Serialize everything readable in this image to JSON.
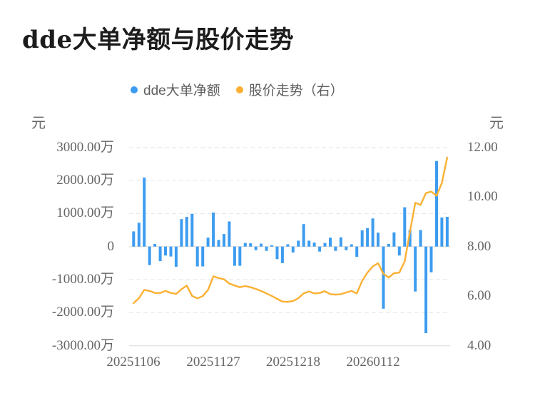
{
  "chart_data": {
    "type": "bar+line",
    "title": "dde大单净额与股价走势",
    "x_tick_labels": [
      "20251106",
      "20251127",
      "20251218",
      "20260112"
    ],
    "x_tick_day_index": [
      0,
      15,
      30,
      45
    ],
    "num_days": 60,
    "grid": "horizontal, dashed, zero-line and bottom-line solid",
    "legend_position": "top-center",
    "left_axis": {
      "unit": "元",
      "tick_labels": [
        "3000.00万",
        "2000.00万",
        "1000.00万",
        "0",
        "-1000.00万",
        "-2000.00万",
        "-3000.00万"
      ],
      "max": 30000000,
      "min": -30000000
    },
    "right_axis": {
      "unit": "元",
      "tick_labels": [
        "12.00",
        "10.00",
        "8.00",
        "6.00",
        "4.00"
      ],
      "max": 12,
      "min": 4
    },
    "series": [
      {
        "name": "dde大单净额",
        "type": "bar",
        "axis": "left",
        "values_unit": "万",
        "color": "#3D9CF0",
        "values": [
          460,
          720,
          2090,
          -560,
          80,
          -440,
          -270,
          -300,
          -610,
          830,
          900,
          990,
          -600,
          -600,
          270,
          1030,
          200,
          380,
          760,
          -580,
          -580,
          110,
          100,
          -110,
          90,
          -130,
          40,
          -380,
          -500,
          70,
          -180,
          180,
          680,
          180,
          120,
          -150,
          110,
          270,
          -130,
          280,
          -110,
          70,
          -310,
          490,
          560,
          850,
          420,
          -1880,
          80,
          430,
          -270,
          1190,
          500,
          -1360,
          500,
          -2620,
          -780,
          2590,
          880,
          900
        ]
      },
      {
        "name": "股价走势（右）",
        "type": "line",
        "axis": "right",
        "values_unit": "元",
        "color": "#FBB033",
        "values": [
          5.72,
          5.92,
          6.25,
          6.21,
          6.13,
          6.13,
          6.21,
          6.13,
          6.09,
          6.28,
          6.43,
          6.01,
          5.91,
          6.0,
          6.25,
          6.8,
          6.73,
          6.68,
          6.51,
          6.43,
          6.36,
          6.41,
          6.36,
          6.29,
          6.21,
          6.11,
          6.01,
          5.89,
          5.78,
          5.77,
          5.8,
          5.92,
          6.11,
          6.19,
          6.11,
          6.13,
          6.2,
          6.08,
          6.06,
          6.08,
          6.15,
          6.21,
          6.11,
          6.62,
          6.95,
          7.2,
          7.33,
          6.9,
          6.75,
          6.93,
          6.95,
          7.4,
          8.6,
          9.77,
          9.68,
          10.16,
          10.22,
          10.05,
          10.56,
          11.59
        ]
      }
    ]
  }
}
